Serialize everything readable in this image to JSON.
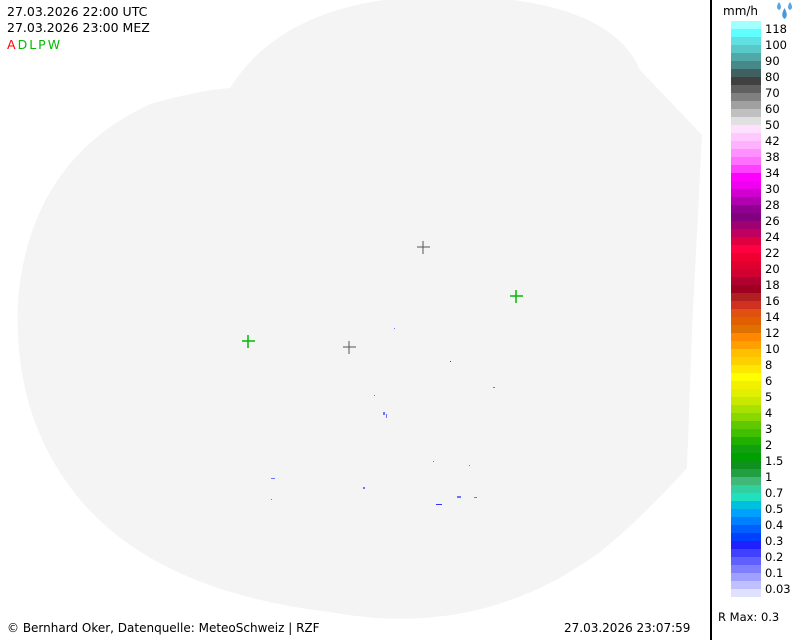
{
  "header": {
    "time_utc": "27.03.2026 22:00 UTC",
    "time_local": "27.03.2026 23:00 MEZ",
    "radar_codes": [
      {
        "code": "A",
        "color": "#ff0000"
      },
      {
        "code": "D",
        "color": "#00bb00"
      },
      {
        "code": "L",
        "color": "#00bb00"
      },
      {
        "code": "P",
        "color": "#00bb00"
      },
      {
        "code": "W",
        "color": "#00bb00"
      }
    ]
  },
  "legend": {
    "unit": "mm/h",
    "icon": "raindrops-icon",
    "labels": [
      "118",
      "100",
      "90",
      "80",
      "70",
      "60",
      "50",
      "42",
      "38",
      "34",
      "30",
      "28",
      "26",
      "24",
      "22",
      "20",
      "18",
      "16",
      "14",
      "12",
      "10",
      "8",
      "6",
      "5",
      "4",
      "3",
      "2",
      "1.5",
      "1",
      "0.7",
      "0.5",
      "0.4",
      "0.3",
      "0.2",
      "0.1",
      "0.03"
    ],
    "colors": [
      "#a0ffff",
      "#60ffff",
      "#60e0e0",
      "#58c8c8",
      "#50a8a8",
      "#488888",
      "#406060",
      "#404040",
      "#606060",
      "#808080",
      "#a0a0a0",
      "#c0c0c0",
      "#e0e0e0",
      "#ffe0ff",
      "#ffc8ff",
      "#ffb0ff",
      "#ff90ff",
      "#ff70ff",
      "#ff40ff",
      "#ff00ff",
      "#f000f0",
      "#d000d0",
      "#b000b0",
      "#900090",
      "#800080",
      "#a00070",
      "#c00060",
      "#e00040",
      "#ff0040",
      "#f00030",
      "#e00030",
      "#d00030",
      "#b00030",
      "#a00020",
      "#b02020",
      "#d03020",
      "#e05010",
      "#e06000",
      "#e07000",
      "#ff8800",
      "#ffa000",
      "#ffc000",
      "#ffd000",
      "#ffe800",
      "#ffff00",
      "#f0f000",
      "#e0f000",
      "#c8e800",
      "#a8e000",
      "#88d800",
      "#60c800",
      "#40c000",
      "#20b000",
      "#10a010",
      "#00a000",
      "#109020",
      "#20a040",
      "#40b878",
      "#30d0a0",
      "#20e0c0",
      "#00c0e0",
      "#00a0ff",
      "#0080ff",
      "#0060ff",
      "#0040ff",
      "#2020ff",
      "#4040ff",
      "#6060ff",
      "#8080ff",
      "#a0a0ff",
      "#c0c0ff",
      "#e0e0ff"
    ],
    "r_max": "R Max: 0.3"
  },
  "map": {
    "coverage_color": "#f4f4f4",
    "rain_color": "#7070ff",
    "radar_site_color": "#00bb00",
    "marker_color": "#555555"
  },
  "footer": {
    "credit": "© Bernhard Oker, Datenquelle: MeteoSchweiz | RZF",
    "timestamp": "27.03.2026 23:07:59"
  }
}
